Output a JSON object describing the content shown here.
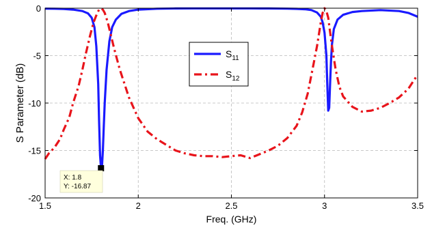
{
  "chart_data": {
    "type": "line",
    "xlabel": "Freq. (GHz)",
    "ylabel": "S Parameter (dB)",
    "xlim": [
      1.5,
      3.5
    ],
    "ylim": [
      -20,
      0
    ],
    "xticks": [
      1.5,
      2,
      2.5,
      3,
      3.5
    ],
    "xtick_labels": [
      "1.5",
      "2",
      "2.5",
      "3",
      "3.5"
    ],
    "yticks": [
      0,
      -5,
      -10,
      -15,
      -20
    ],
    "ytick_labels": [
      "0",
      "-5",
      "-10",
      "-15",
      "-20"
    ],
    "grid": true,
    "legend_position": "center",
    "series": [
      {
        "name": "S11",
        "label_main": "S",
        "label_sub": "11",
        "color": "#1a1aff",
        "style": "solid",
        "x": [
          1.5,
          1.55,
          1.6,
          1.65,
          1.7,
          1.73,
          1.75,
          1.765,
          1.775,
          1.785,
          1.79,
          1.795,
          1.8,
          1.805,
          1.81,
          1.815,
          1.82,
          1.83,
          1.845,
          1.86,
          1.88,
          1.91,
          1.95,
          2.0,
          2.1,
          2.2,
          2.3,
          2.4,
          2.5,
          2.6,
          2.7,
          2.8,
          2.85,
          2.9,
          2.93,
          2.96,
          2.98,
          2.99,
          3.0,
          3.01,
          3.015,
          3.02,
          3.025,
          3.03,
          3.035,
          3.04,
          3.05,
          3.07,
          3.1,
          3.15,
          3.2,
          3.3,
          3.4,
          3.45,
          3.5
        ],
        "y": [
          -0.05,
          -0.06,
          -0.08,
          -0.15,
          -0.3,
          -0.55,
          -1.0,
          -2.0,
          -4.0,
          -8.0,
          -12.0,
          -15.5,
          -16.87,
          -16.8,
          -15.0,
          -12.5,
          -10.0,
          -6.5,
          -3.5,
          -2.0,
          -1.2,
          -0.6,
          -0.3,
          -0.15,
          -0.06,
          -0.03,
          -0.02,
          -0.02,
          -0.02,
          -0.02,
          -0.03,
          -0.05,
          -0.07,
          -0.12,
          -0.2,
          -0.45,
          -0.9,
          -1.5,
          -2.6,
          -5.0,
          -8.0,
          -10.8,
          -10.5,
          -8.0,
          -5.5,
          -3.8,
          -2.2,
          -1.2,
          -0.7,
          -0.4,
          -0.3,
          -0.2,
          -0.3,
          -0.5,
          -0.9
        ]
      },
      {
        "name": "S12",
        "label_main": "S",
        "label_sub": "12",
        "color": "#e8141b",
        "style": "dashdot",
        "x": [
          1.5,
          1.52,
          1.55,
          1.58,
          1.6,
          1.63,
          1.65,
          1.68,
          1.7,
          1.72,
          1.74,
          1.76,
          1.78,
          1.79,
          1.8,
          1.81,
          1.82,
          1.835,
          1.85,
          1.87,
          1.9,
          1.95,
          2.0,
          2.05,
          2.1,
          2.15,
          2.2,
          2.25,
          2.3,
          2.35,
          2.4,
          2.45,
          2.5,
          2.55,
          2.6,
          2.65,
          2.7,
          2.75,
          2.8,
          2.85,
          2.88,
          2.91,
          2.94,
          2.96,
          2.98,
          2.99,
          3.0,
          3.01,
          3.02,
          3.03,
          3.04,
          3.06,
          3.08,
          3.1,
          3.15,
          3.2,
          3.25,
          3.3,
          3.35,
          3.4,
          3.45,
          3.5
        ],
        "y": [
          -15.9,
          -15.3,
          -14.7,
          -13.8,
          -12.8,
          -11.5,
          -10.0,
          -8.2,
          -6.5,
          -4.7,
          -3.0,
          -1.5,
          -0.5,
          -0.15,
          0.0,
          -0.15,
          -0.5,
          -1.4,
          -2.6,
          -4.2,
          -6.4,
          -9.4,
          -11.6,
          -13.0,
          -13.8,
          -14.4,
          -15.0,
          -15.3,
          -15.5,
          -15.6,
          -15.6,
          -15.7,
          -15.6,
          -15.5,
          -15.8,
          -15.4,
          -15.0,
          -14.5,
          -13.7,
          -12.4,
          -11.0,
          -9.0,
          -6.0,
          -4.0,
          -1.5,
          -0.5,
          0.0,
          -0.3,
          -1.0,
          -2.5,
          -4.0,
          -6.5,
          -8.3,
          -9.3,
          -10.4,
          -10.9,
          -10.8,
          -10.5,
          -10.0,
          -9.4,
          -8.5,
          -7.0
        ]
      }
    ],
    "datatip": {
      "x_label": "X: 1.8",
      "y_label": "Y: -16.87",
      "x": 1.8,
      "y": -16.87
    }
  }
}
